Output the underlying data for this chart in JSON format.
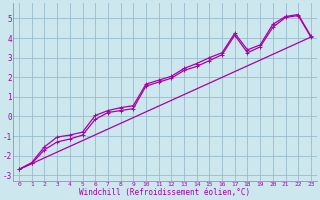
{
  "xlabel": "Windchill (Refroidissement éolien,°C)",
  "bg_color": "#cce8ee",
  "line_color": "#aa00aa",
  "grid_color": "#99bbcc",
  "x_ticks": [
    0,
    1,
    2,
    3,
    4,
    5,
    6,
    7,
    8,
    9,
    10,
    11,
    12,
    13,
    14,
    15,
    16,
    17,
    18,
    19,
    20,
    21,
    22,
    23
  ],
  "y_ticks": [
    -3,
    -2,
    -1,
    0,
    1,
    2,
    3,
    4,
    5
  ],
  "xlim": [
    -0.5,
    23.5
  ],
  "ylim": [
    -3.3,
    5.8
  ],
  "line1_y": [
    -2.7,
    -2.4,
    -1.7,
    -1.3,
    -1.15,
    -0.95,
    -0.15,
    0.2,
    0.3,
    0.4,
    1.55,
    1.75,
    1.95,
    2.35,
    2.55,
    2.85,
    3.15,
    4.15,
    3.25,
    3.55,
    4.55,
    5.05,
    5.15,
    4.05
  ],
  "line2_y": [
    -2.7,
    -2.35,
    -1.55,
    -1.05,
    -0.95,
    -0.8,
    0.05,
    0.3,
    0.45,
    0.55,
    1.65,
    1.85,
    2.05,
    2.45,
    2.7,
    3.0,
    3.25,
    4.25,
    3.4,
    3.65,
    4.7,
    5.1,
    5.2,
    4.1
  ],
  "line3_y": [
    -2.7,
    4.05
  ],
  "marker_size": 2.5,
  "line_width": 0.9,
  "xlabel_fontsize": 5.5,
  "tick_fontsize_x": 4.5,
  "tick_fontsize_y": 5.5
}
